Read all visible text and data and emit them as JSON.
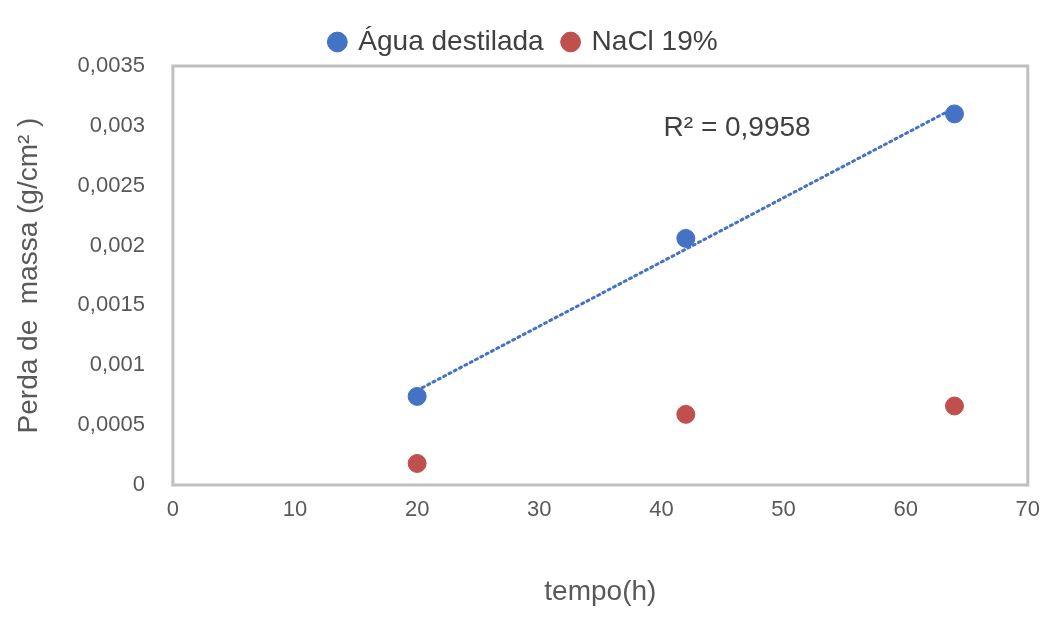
{
  "chart_data": {
    "type": "scatter",
    "xlabel": "tempo(h)",
    "ylabel": "Perda de  massa (g/cm² )",
    "xlim": [
      0,
      70
    ],
    "xticks": [
      0,
      10,
      20,
      30,
      40,
      50,
      60,
      70
    ],
    "ylim": [
      0,
      0.0035
    ],
    "yticks": [
      0,
      {
        "value": 0.0005,
        "label": "0,0005"
      },
      {
        "value": 0.001,
        "label": "0,001"
      },
      {
        "value": 0.0015,
        "label": "0,0015"
      },
      {
        "value": 0.002,
        "label": "0,002"
      },
      {
        "value": 0.0025,
        "label": "0,0025"
      },
      {
        "value": 0.003,
        "label": "0,003"
      },
      {
        "value": 0.0035,
        "label": "0,0035"
      }
    ],
    "x": [
      20,
      42,
      64
    ],
    "series": [
      {
        "name": "Água destilada",
        "color": "#4472c4",
        "values": [
          0.00074,
          0.00206,
          0.0031
        ]
      },
      {
        "name": "NaCl 19%",
        "color": "#c0504d",
        "values": [
          0.00018,
          0.00059,
          0.00066
        ]
      },
      {
        "type": "line",
        "color": "#4472c4",
        "line_style": "dotted",
        "marker": "none",
        "x": [
          20,
          64
        ],
        "values": [
          0.00079,
          0.00315
        ]
      }
    ],
    "annotations": [
      "R² = 0,9958"
    ],
    "marker": "circle",
    "legend": "top",
    "grid": false
  }
}
